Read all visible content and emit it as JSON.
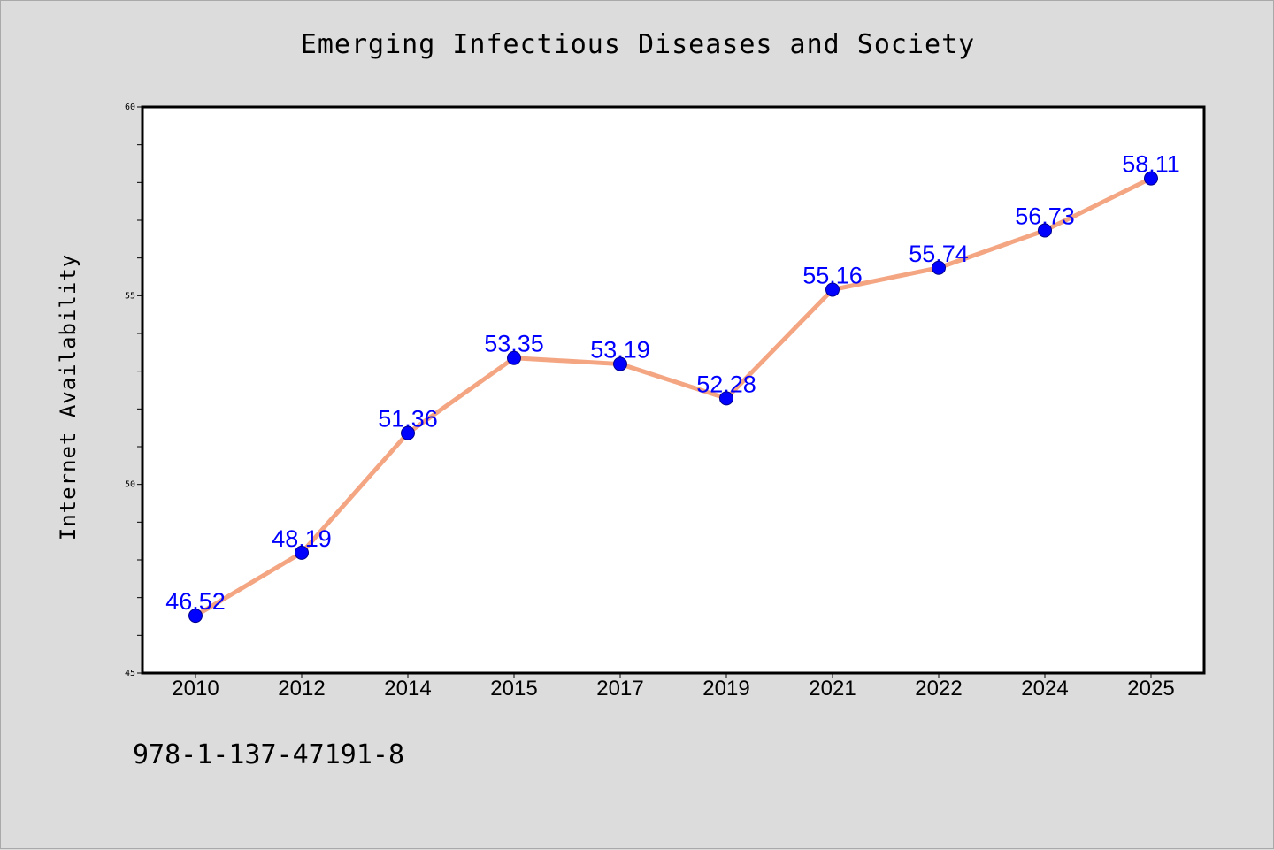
{
  "chart_data": {
    "type": "line",
    "title": "Emerging Infectious Diseases and Society",
    "xlabel": "",
    "ylabel": "Internet Availability",
    "categories": [
      "2010",
      "2012",
      "2014",
      "2015",
      "2017",
      "2019",
      "2021",
      "2022",
      "2024",
      "2025"
    ],
    "values": [
      46.52,
      48.19,
      51.36,
      53.35,
      53.19,
      52.28,
      55.16,
      55.74,
      56.73,
      58.11
    ],
    "value_labels": [
      "46.52",
      "48.19",
      "51.36",
      "53.35",
      "53.19",
      "52.28",
      "55.16",
      "55.74",
      "56.73",
      "58.11"
    ],
    "ylim": [
      45,
      60
    ],
    "y_ticks": [
      "45",
      "50",
      "55",
      "60"
    ],
    "grid": false,
    "legend": "none",
    "colors": {
      "line": "#f4a582",
      "marker": "#0000ff",
      "data_label": "#0000ff",
      "background": "#dcdcdc",
      "plot_background": "#ffffff"
    }
  },
  "footer": {
    "isbn": "978-1-137-47191-8"
  }
}
